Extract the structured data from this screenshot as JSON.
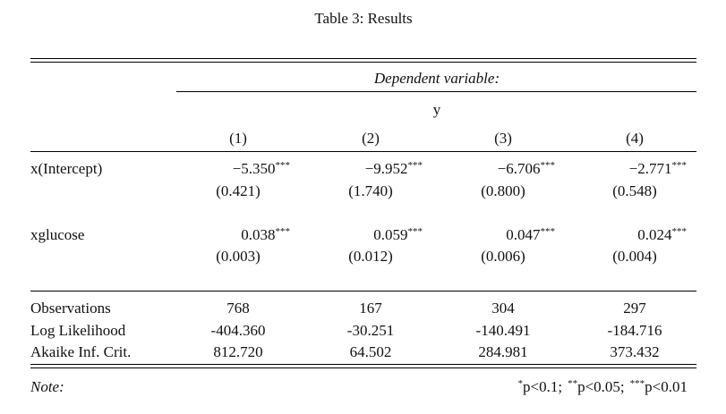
{
  "title": "Table 3: Results",
  "header": {
    "dependent": "Dependent variable:",
    "variable": "y",
    "columns": [
      "(1)",
      "(2)",
      "(3)",
      "(4)"
    ]
  },
  "table": {
    "rows": [
      {
        "label": "x(Intercept)",
        "coefs": [
          {
            "value": "−5.350",
            "stars": "***"
          },
          {
            "value": "−9.952",
            "stars": "***"
          },
          {
            "value": "−6.706",
            "stars": "***"
          },
          {
            "value": "−2.771",
            "stars": "***"
          }
        ],
        "se": [
          "(0.421)",
          "(1.740)",
          "(0.800)",
          "(0.548)"
        ]
      },
      {
        "label": "xglucose",
        "coefs": [
          {
            "value": "0.038",
            "stars": "***"
          },
          {
            "value": "0.059",
            "stars": "***"
          },
          {
            "value": "0.047",
            "stars": "***"
          },
          {
            "value": "0.024",
            "stars": "***"
          }
        ],
        "se": [
          "(0.003)",
          "(0.012)",
          "(0.006)",
          "(0.004)"
        ]
      }
    ],
    "stats": [
      {
        "label": "Observations",
        "values": [
          "768",
          "167",
          "304",
          "297"
        ]
      },
      {
        "label": "Log Likelihood",
        "values": [
          "-404.360",
          "-30.251",
          "-140.491",
          "-184.716"
        ]
      },
      {
        "label": "Akaike Inf. Crit.",
        "values": [
          "812.720",
          "64.502",
          "284.981",
          "373.432"
        ]
      }
    ]
  },
  "note": {
    "label": "Note:",
    "items": [
      {
        "stars": "*",
        "text": "p<0.1;"
      },
      {
        "stars": "**",
        "text": "p<0.05;"
      },
      {
        "stars": "***",
        "text": "p<0.01"
      }
    ]
  }
}
